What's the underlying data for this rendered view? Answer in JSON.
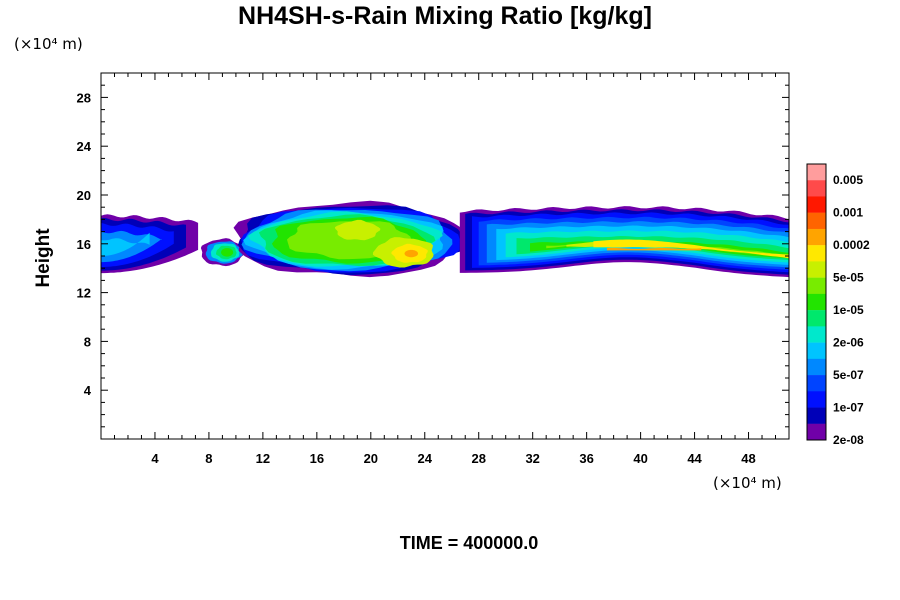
{
  "chart_data": {
    "type": "heatmap",
    "title": "NH4SH-s-Rain Mixing Ratio [kg/kg]",
    "xlabel": "",
    "ylabel": "Height",
    "x_unit": "(×10⁴ m)",
    "y_unit": "(×10⁴ m)",
    "xlim": [
      0,
      51
    ],
    "ylim": [
      0,
      30
    ],
    "x_ticks": [
      "4",
      "8",
      "12",
      "16",
      "20",
      "24",
      "28",
      "32",
      "36",
      "40",
      "44",
      "48"
    ],
    "y_ticks": [
      "4",
      "8",
      "12",
      "16",
      "20",
      "24",
      "28"
    ],
    "x_tick_values": [
      4,
      8,
      12,
      16,
      20,
      24,
      28,
      32,
      36,
      40,
      44,
      48
    ],
    "y_tick_values": [
      4,
      8,
      12,
      16,
      20,
      24,
      28
    ],
    "colorbar": {
      "labels": [
        "0.005",
        "0.001",
        "0.0002",
        "5e-05",
        "1e-05",
        "2e-06",
        "5e-07",
        "1e-07",
        "2e-08"
      ],
      "colors_top_to_bottom": [
        "#ff9d9d",
        "#ff4a4a",
        "#ff1800",
        "#ff6400",
        "#ffa400",
        "#ffe800",
        "#c8f000",
        "#78ec00",
        "#22e400",
        "#00e86c",
        "#00e8cc",
        "#00c4ff",
        "#0088ff",
        "#0044ff",
        "#0010ff",
        "#0000b8",
        "#7000a8"
      ]
    },
    "time_label": "TIME = 400000.0",
    "regions": [
      {
        "id": "left-edge-band",
        "x_range": [
          0,
          7.2
        ],
        "outer_bounds_y": [
          13.6,
          18.4
        ],
        "max_level": "5e-07",
        "description_levels": [
          "2e-08",
          "1e-07",
          "5e-07"
        ]
      },
      {
        "id": "small-cell",
        "x_range": [
          7.5,
          10.5
        ],
        "outer_bounds_y": [
          14.2,
          16.6
        ],
        "max_level": "1e-05"
      },
      {
        "id": "central-cloud",
        "x_range": [
          9.5,
          27
        ],
        "outer_bounds_y": [
          13.4,
          19.4
        ],
        "max_level": "0.0002"
      },
      {
        "id": "right-band",
        "x_range": [
          26.5,
          51
        ],
        "outer_bounds_y": [
          13.6,
          19.0
        ],
        "max_level": "0.0002"
      }
    ]
  }
}
